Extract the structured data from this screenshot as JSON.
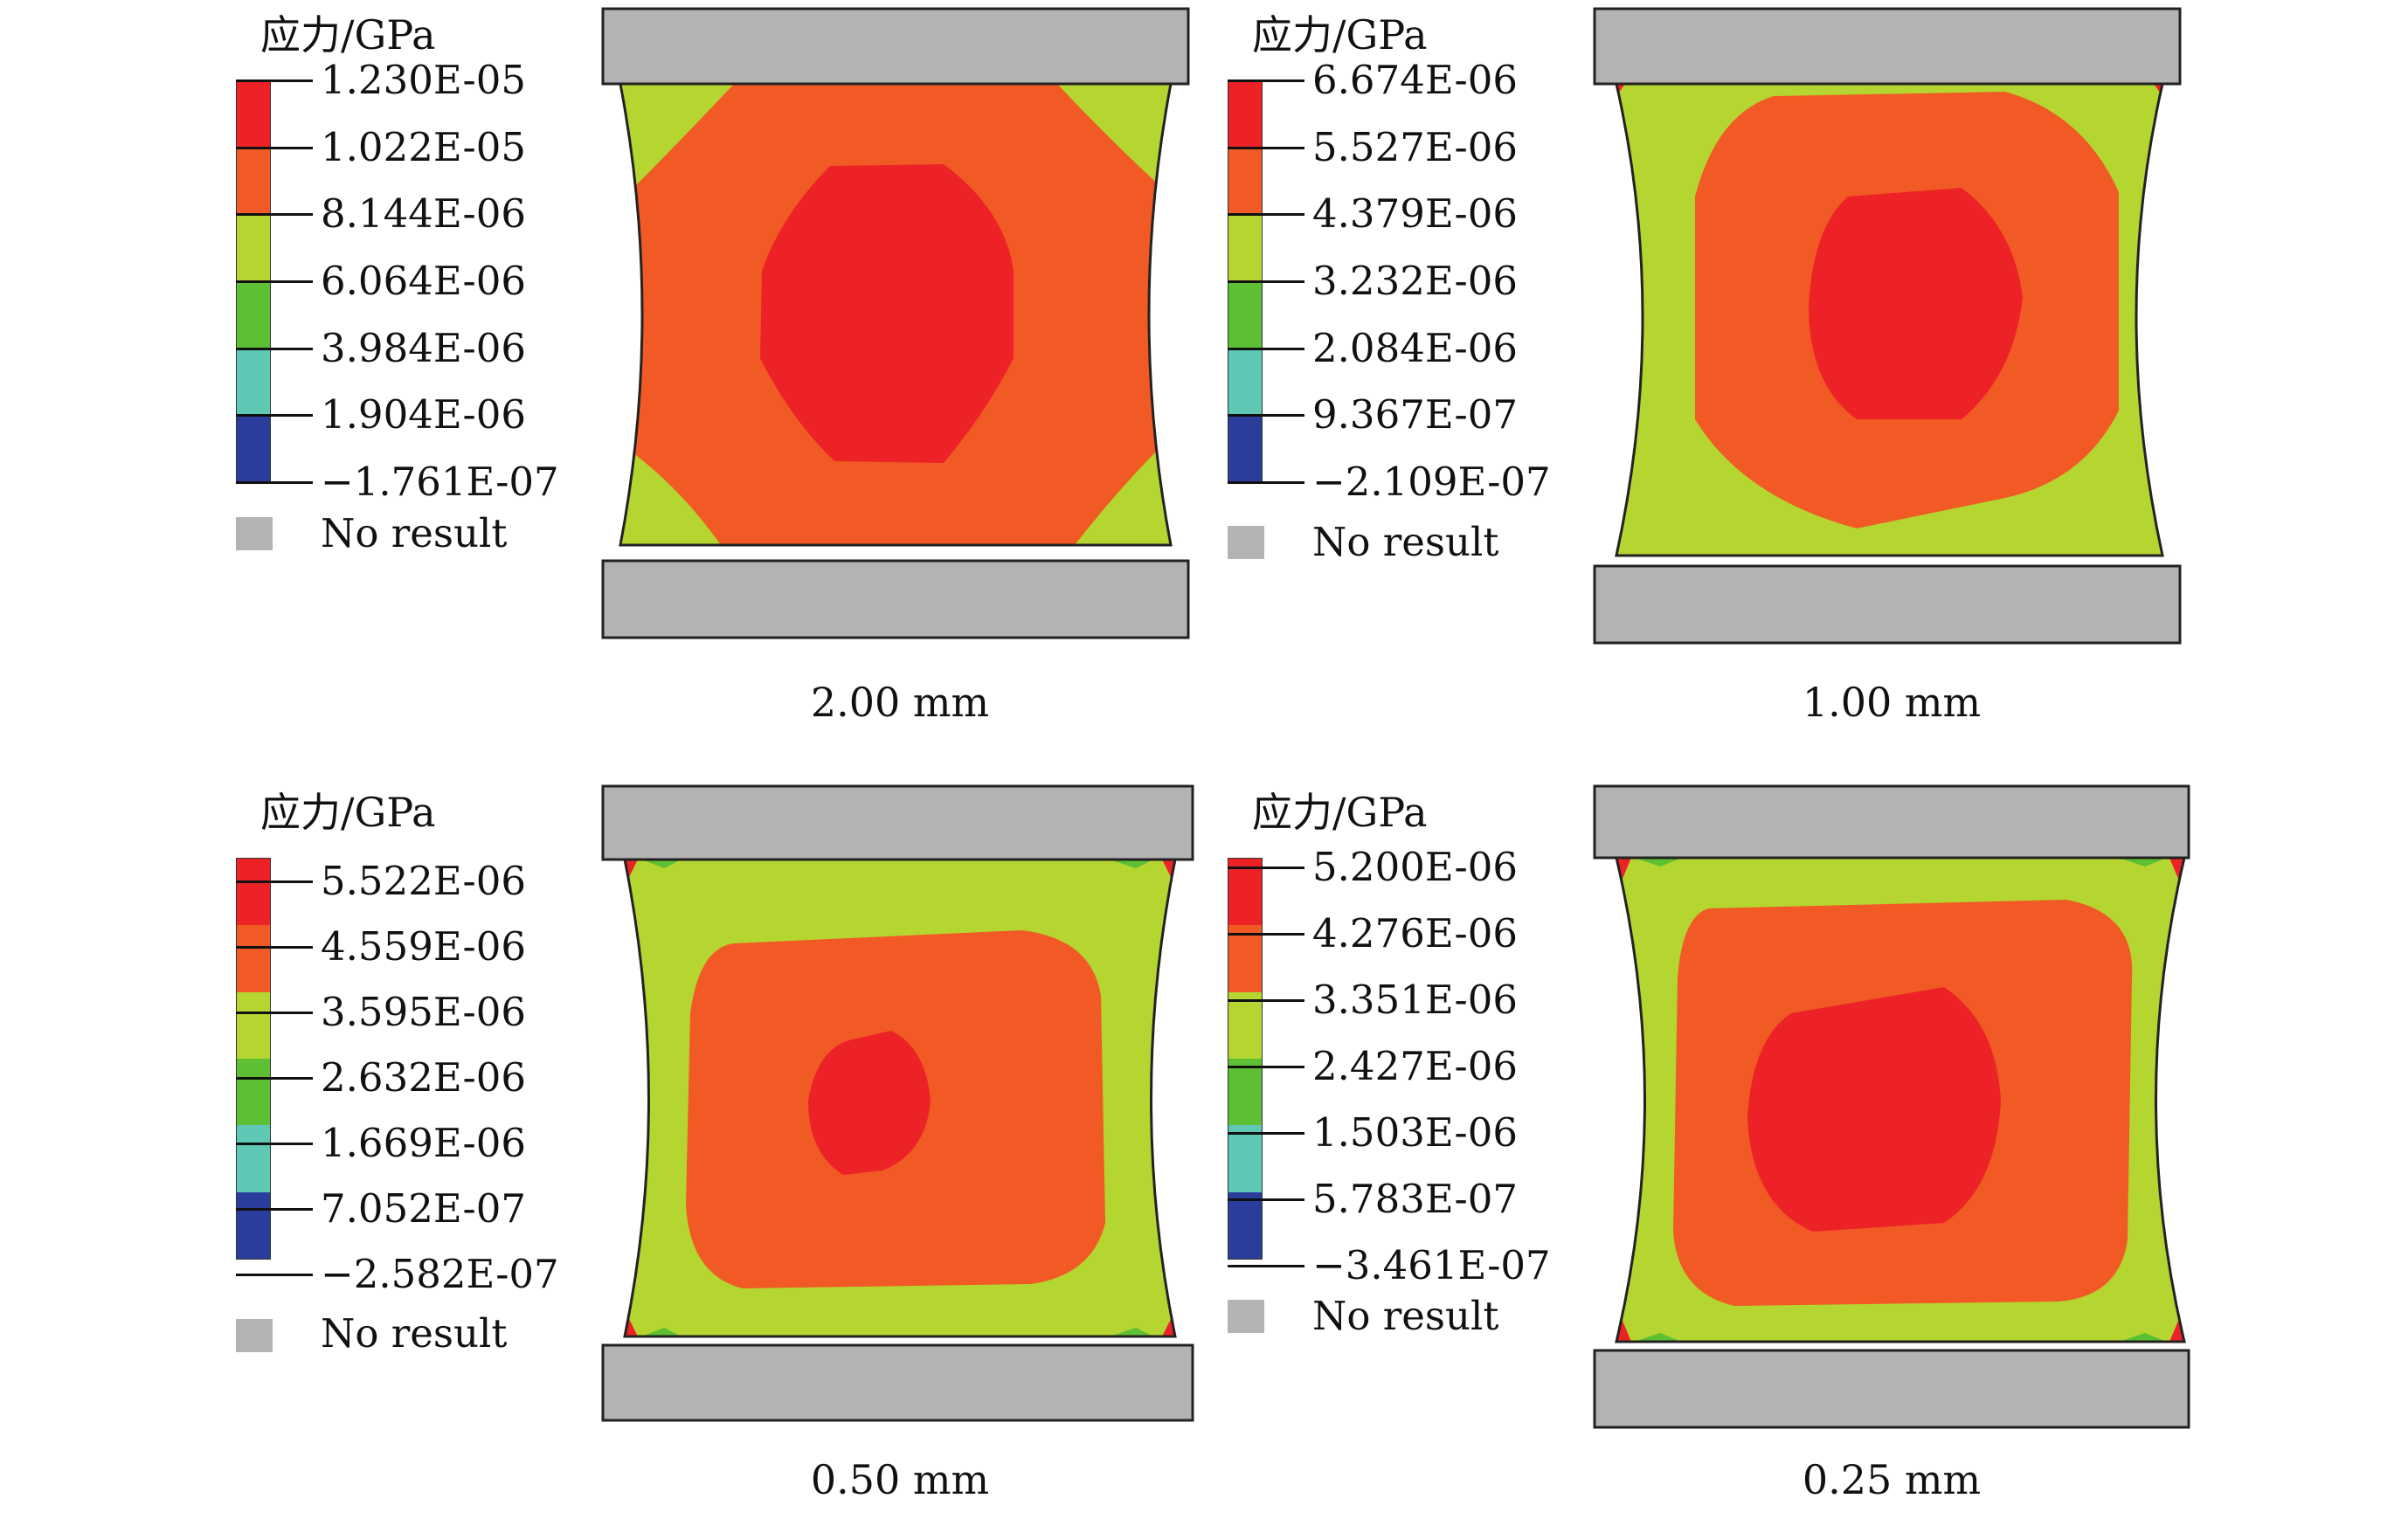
{
  "colors": {
    "red": "#ec2227",
    "orange": "#f15a24",
    "yellow_green": "#b5d630",
    "green": "#5cbf34",
    "teal": "#5ec8b5",
    "blue": "#2a3d9a",
    "no_result": "#b3b3b3",
    "outline": "#222222"
  },
  "panels": [
    {
      "legend": {
        "title": "应力/GPa",
        "values": [
          "1.230E-05",
          "1.022E-05",
          "8.144E-06",
          "6.064E-06",
          "3.984E-06",
          "1.904E-06",
          "−1.761E-07"
        ],
        "no_result": "No result"
      },
      "caption": "2.00 mm",
      "thickness_mm": 2.0
    },
    {
      "legend": {
        "title": "应力/GPa",
        "values": [
          "6.674E-06",
          "5.527E-06",
          "4.379E-06",
          "3.232E-06",
          "2.084E-06",
          "9.367E-07",
          "−2.109E-07"
        ],
        "no_result": "No result"
      },
      "caption": "1.00 mm",
      "thickness_mm": 1.0
    },
    {
      "legend": {
        "title": "应力/GPa",
        "values": [
          "5.522E-06",
          "4.559E-06",
          "3.595E-06",
          "2.632E-06",
          "1.669E-06",
          "7.052E-07",
          "−2.582E-07"
        ],
        "no_result": "No result"
      },
      "caption": "0.50 mm",
      "thickness_mm": 0.5
    },
    {
      "legend": {
        "title": "应力/GPa",
        "values": [
          "5.200E-06",
          "4.276E-06",
          "3.351E-06",
          "2.427E-06",
          "1.503E-06",
          "5.783E-07",
          "−3.461E-07"
        ],
        "no_result": "No result"
      },
      "caption": "0.25 mm",
      "thickness_mm": 0.25
    }
  ]
}
